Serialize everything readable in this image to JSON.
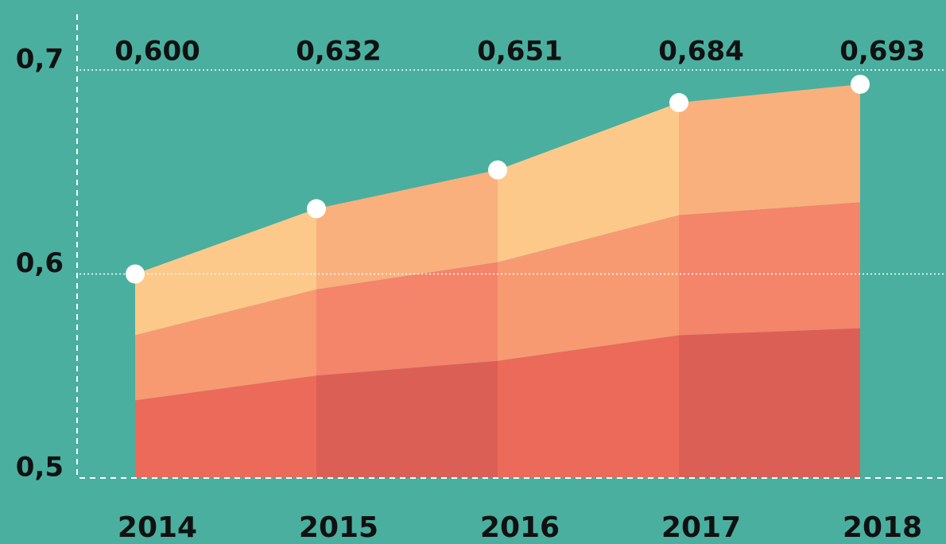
{
  "chart_data": {
    "type": "area",
    "categories": [
      "2014",
      "2015",
      "2016",
      "2017",
      "2018"
    ],
    "values": [
      0.6,
      0.632,
      0.651,
      0.684,
      0.693
    ],
    "value_labels": [
      "0,600",
      "0,632",
      "0,651",
      "0,684",
      "0,693"
    ],
    "ylim": [
      0.5,
      0.7
    ],
    "yticks": [
      {
        "value": 0.5,
        "label": "0,5"
      },
      {
        "value": 0.6,
        "label": "0,6"
      },
      {
        "value": 0.7,
        "label": "0,7"
      }
    ],
    "grid": true
  }
}
